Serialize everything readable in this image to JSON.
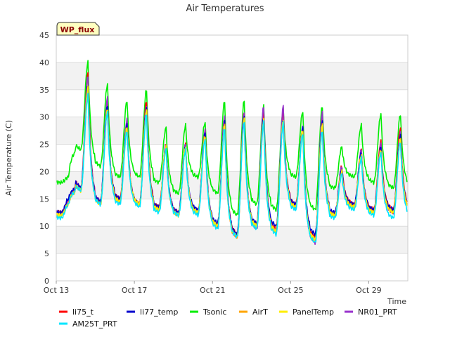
{
  "chart_data": {
    "type": "line",
    "title": "Air Temperatures",
    "xlabel": "Time",
    "ylabel": "Air Temperature (C)",
    "site_tag": "WP_flux",
    "ylim": [
      0,
      45
    ],
    "yticks": [
      0,
      5,
      10,
      15,
      20,
      25,
      30,
      35,
      40,
      45
    ],
    "xlim_days": [
      13,
      31
    ],
    "xticks": [
      {
        "label": "Oct 13",
        "day": 13
      },
      {
        "label": "Oct 17",
        "day": 17
      },
      {
        "label": "Oct 21",
        "day": 21
      },
      {
        "label": "Oct 25",
        "day": 25
      },
      {
        "label": "Oct 29",
        "day": 29
      }
    ],
    "grid": "horizontal banded",
    "legend_position": "bottom",
    "days": [
      13,
      14,
      15,
      16,
      17,
      18,
      19,
      20,
      21,
      22,
      23,
      24,
      25,
      26,
      27,
      28,
      29,
      30
    ],
    "series": [
      {
        "name": "li75_t",
        "color": "#ff0000",
        "daily_min": [
          12.5,
          17,
          14.5,
          15,
          14,
          13.5,
          12.5,
          12.5,
          10,
          8.5,
          10,
          9.5,
          14,
          8,
          12,
          14,
          13,
          13
        ],
        "daily_max": [
          14.5,
          38,
          32.5,
          29,
          33,
          25,
          25,
          27.5,
          30,
          31,
          31,
          31,
          28,
          30,
          21,
          24,
          25.5,
          28
        ]
      },
      {
        "name": "li77_temp",
        "color": "#0000cc",
        "daily_min": [
          12.5,
          17,
          14.5,
          15,
          14,
          13.5,
          12.5,
          13,
          10.5,
          8.5,
          10.5,
          10,
          14,
          8.5,
          12.5,
          14,
          13,
          13
        ],
        "daily_max": [
          15,
          36,
          32,
          28.5,
          31.5,
          24.5,
          24.5,
          27,
          29,
          30,
          30,
          29.5,
          28,
          29,
          20.5,
          23.5,
          24.5,
          26.5
        ]
      },
      {
        "name": "Tsonic",
        "color": "#00ee00",
        "daily_min": [
          18,
          24,
          21,
          19,
          19,
          18,
          16,
          19,
          16,
          12,
          14,
          13,
          19,
          13,
          17,
          19,
          18,
          17
        ],
        "daily_max": [
          19,
          40,
          36,
          33,
          35,
          28,
          28.5,
          29,
          33,
          33,
          32,
          31.5,
          31,
          32,
          24.5,
          28.5,
          30.5,
          30.5
        ]
      },
      {
        "name": "AirT",
        "color": "#ffa500",
        "daily_min": [
          12,
          16.5,
          14,
          14.5,
          14,
          13,
          12,
          12.5,
          10,
          8,
          10,
          9,
          13.5,
          7.5,
          12,
          13.5,
          12.5,
          12.5
        ],
        "daily_max": [
          14,
          35,
          31.5,
          28,
          31,
          24.5,
          24.5,
          26.5,
          28.5,
          29.5,
          29.5,
          29.5,
          27.5,
          28.5,
          20,
          23,
          24,
          26
        ]
      },
      {
        "name": "PanelTemp",
        "color": "#ffee00",
        "daily_min": [
          12,
          16.5,
          14,
          14.5,
          14,
          13,
          12,
          12.5,
          10,
          8,
          10,
          9,
          13.5,
          7.5,
          12,
          13.5,
          12.5,
          12.5
        ],
        "daily_max": [
          14,
          35.5,
          31.5,
          28,
          31,
          24.5,
          24.5,
          26.5,
          28.5,
          29.5,
          29.5,
          29.5,
          27.5,
          28.5,
          20,
          23,
          24,
          26
        ]
      },
      {
        "name": "NR01_PRT",
        "color": "#9932cc",
        "daily_min": [
          12.5,
          17,
          14.5,
          14.5,
          14,
          13,
          12.5,
          12.5,
          10,
          8,
          9.5,
          9,
          13.5,
          7,
          12,
          13.5,
          12.5,
          12.5
        ],
        "daily_max": [
          14.5,
          37.5,
          33.5,
          29.5,
          32,
          25,
          25,
          27.5,
          30,
          31,
          32,
          32,
          28,
          31,
          21,
          24,
          25,
          27
        ]
      },
      {
        "name": "AM25T_PRT",
        "color": "#00e5ff",
        "daily_min": [
          11.5,
          16.5,
          14,
          14,
          13.5,
          12.5,
          12,
          12,
          9.5,
          8,
          9.5,
          8.5,
          13,
          7,
          11.5,
          13,
          12,
          11.5
        ],
        "daily_max": [
          14,
          34,
          31,
          27.5,
          30.5,
          24,
          24,
          26,
          28,
          29,
          29,
          29,
          27,
          27.5,
          19.5,
          22.5,
          23.5,
          25.5
        ]
      }
    ]
  }
}
